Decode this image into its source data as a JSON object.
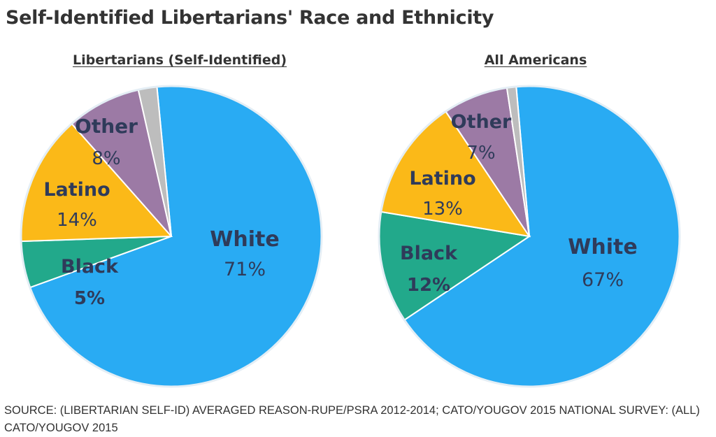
{
  "title": "Self-Identified Libertarians' Race and Ethnicity",
  "source": "SOURCE: (LIBERTARIAN SELF-ID) AVERAGED REASON-RUPE/PSRA 2012-2014; CATO/YOUGOV 2015 NATIONAL SURVEY: (ALL) CATO/YOUGOV 2015",
  "colors": {
    "White": "#29abf3",
    "Black": "#22a98b",
    "Latino": "#fbb918",
    "Other": "#9c7aa5",
    "Unlabeled": "#bdbdbd",
    "label_text": "#2f3b5a"
  },
  "chart_data": [
    {
      "type": "pie",
      "title": "Libertarians (Self-Identified)",
      "slices": [
        {
          "label": "White",
          "value": 71,
          "value_label": "71%",
          "bold_value": false
        },
        {
          "label": "Black",
          "value": 5,
          "value_label": "5%",
          "bold_value": true
        },
        {
          "label": "Latino",
          "value": 14,
          "value_label": "14%",
          "bold_value": false
        },
        {
          "label": "Other",
          "value": 8,
          "value_label": "8%",
          "bold_value": false
        },
        {
          "label": "",
          "value": 2,
          "value_label": "",
          "bold_value": false
        }
      ]
    },
    {
      "type": "pie",
      "title": "All Americans",
      "slices": [
        {
          "label": "White",
          "value": 67,
          "value_label": "67%",
          "bold_value": false
        },
        {
          "label": "Black",
          "value": 12,
          "value_label": "12%",
          "bold_value": true
        },
        {
          "label": "Latino",
          "value": 13,
          "value_label": "13%",
          "bold_value": false
        },
        {
          "label": "Other",
          "value": 7,
          "value_label": "7%",
          "bold_value": false
        },
        {
          "label": "",
          "value": 1,
          "value_label": "",
          "bold_value": false
        }
      ]
    }
  ]
}
